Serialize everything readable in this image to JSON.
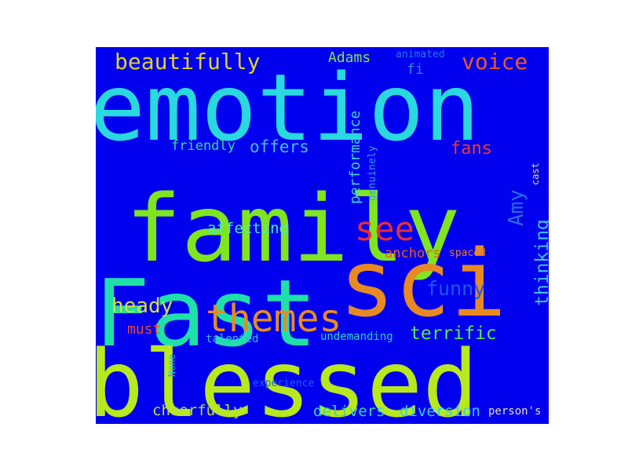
{
  "background_color": "#0000ee",
  "words": [
    {
      "text": "emotion",
      "color": "#2ad8e0"
    },
    {
      "text": "family",
      "color": "#7ee51f"
    },
    {
      "text": "Fast",
      "color": "#1fe0a8"
    },
    {
      "text": "sci",
      "color": "#e88a22"
    },
    {
      "text": "blessed",
      "color": "#b8e81e"
    },
    {
      "text": "themes",
      "color": "#e88a22"
    },
    {
      "text": "see",
      "color": "#ea2f2f"
    },
    {
      "text": "beautifully",
      "color": "#ded22a"
    },
    {
      "text": "voice",
      "color": "#ea5a25"
    },
    {
      "text": "Adams",
      "color": "#7ee54f"
    },
    {
      "text": "animated",
      "color": "#2478e0"
    },
    {
      "text": "fi",
      "color": "#2a88e0"
    },
    {
      "text": "friendly",
      "color": "#3ad98a"
    },
    {
      "text": "offers",
      "color": "#45c0ee"
    },
    {
      "text": "fans",
      "color": "#ea3a2a"
    },
    {
      "text": "performance",
      "color": "#40d2d2"
    },
    {
      "text": "genuinely",
      "color": "#3a9ae8"
    },
    {
      "text": "Amy",
      "color": "#2a6ae4"
    },
    {
      "text": "cast",
      "color": "#ead86a"
    },
    {
      "text": "affecting",
      "color": "#4ae8b8"
    },
    {
      "text": "thinking",
      "color": "#42c2e2"
    },
    {
      "text": "anchors",
      "color": "#ea5a28"
    },
    {
      "text": "spaced",
      "color": "#ea7a2e"
    },
    {
      "text": "funny",
      "color": "#1a5ae8"
    },
    {
      "text": "heady",
      "color": "#d8e03a"
    },
    {
      "text": "must",
      "color": "#ea4a2e"
    },
    {
      "text": "terrific",
      "color": "#5ae84a"
    },
    {
      "text": "talented",
      "color": "#3ab8e8"
    },
    {
      "text": "undemanding",
      "color": "#2ad2b8"
    },
    {
      "text": "None",
      "color": "#2ab0e8"
    },
    {
      "text": "experience",
      "color": "#1a62e2"
    },
    {
      "text": "cheerfully",
      "color": "#b8e03a"
    },
    {
      "text": "delivers",
      "color": "#3ad8a8"
    },
    {
      "text": "diversion",
      "color": "#3acde8"
    },
    {
      "text": "person's",
      "color": "#e8e0a8"
    }
  ]
}
